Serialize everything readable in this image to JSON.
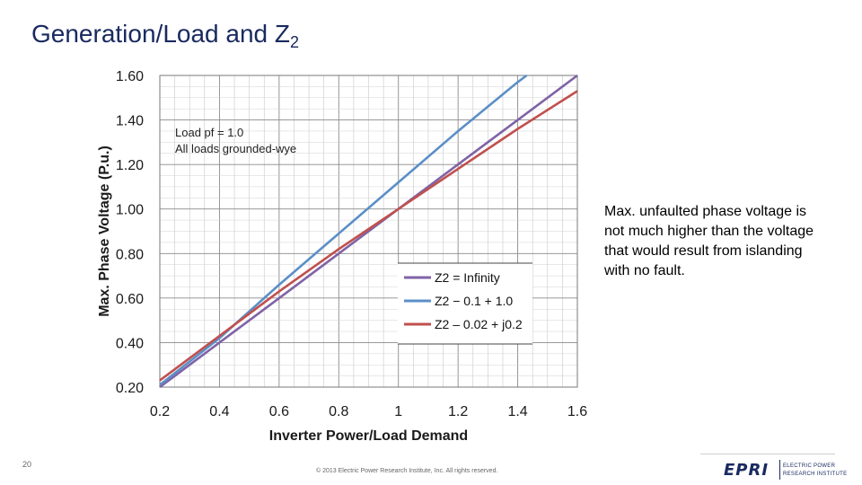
{
  "slide": {
    "title": "Generation/Load and Z",
    "title_subscript": "2",
    "side_note": "Max. unfaulted phase voltage is not much higher than the voltage that would result from islanding with no fault.",
    "page_number": "20",
    "copyright": "© 2013 Electric Power Research Institute, Inc. All rights reserved.",
    "logo": {
      "mark": "EPRI",
      "line1": "ELECTRIC POWER",
      "line2": "RESEARCH INSTITUTE"
    }
  },
  "chart_data": {
    "type": "line",
    "title": "",
    "xlabel": "Inverter Power/Load Demand",
    "ylabel": "Max. Phase Voltage (P.u.)",
    "xlim": [
      0.2,
      1.6
    ],
    "ylim": [
      0.2,
      1.6
    ],
    "x_ticks": [
      "0.2",
      "0.4",
      "0.6",
      "0.8",
      "1",
      "1.2",
      "1.4",
      "1.6"
    ],
    "y_ticks": [
      "0.20",
      "0.40",
      "0.60",
      "0.80",
      "1.00",
      "1.20",
      "1.40",
      "1.60"
    ],
    "grid": true,
    "annotation": [
      "Load pf = 1.0",
      "All loads grounded-wye"
    ],
    "legend_position": "lower-right",
    "series": [
      {
        "name": "Z2 = Infinity",
        "color": "#7f63a7",
        "x": [
          0.2,
          0.4,
          0.6,
          0.8,
          1.0,
          1.2,
          1.4,
          1.6
        ],
        "y": [
          0.2,
          0.4,
          0.6,
          0.8,
          1.0,
          1.2,
          1.4,
          1.6
        ]
      },
      {
        "name": "Z2 − 0.1 + 1.0",
        "color": "#5b8fc7",
        "x": [
          0.2,
          0.4,
          0.6,
          0.8,
          1.0,
          1.2,
          1.4,
          1.43
        ],
        "y": [
          0.21,
          0.42,
          0.66,
          0.89,
          1.12,
          1.35,
          1.57,
          1.6
        ]
      },
      {
        "name": "Z2 – 0.02 + j0.2",
        "color": "#c0504d",
        "x": [
          0.2,
          0.4,
          0.6,
          0.8,
          1.0,
          1.2,
          1.4,
          1.6
        ],
        "y": [
          0.23,
          0.43,
          0.63,
          0.82,
          1.0,
          1.18,
          1.36,
          1.53
        ]
      }
    ]
  }
}
